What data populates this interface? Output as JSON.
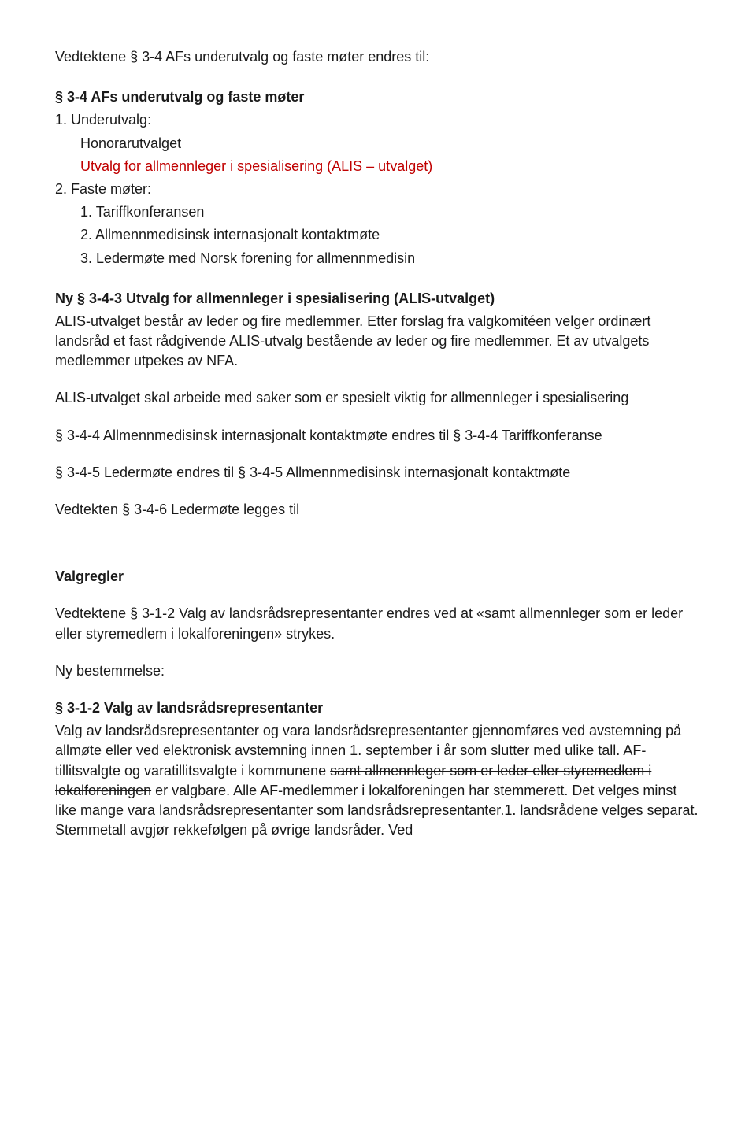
{
  "doc": {
    "p1": "Vedtektene § 3-4 AFs underutvalg og faste møter endres til:",
    "p2": "§ 3-4 AFs underutvalg og faste møter",
    "li1": "1. Underutvalg:",
    "li1a": "Honorarutvalget",
    "li1b": "Utvalg for allmennleger i spesialisering (ALIS – utvalget)",
    "li2": "2. Faste møter:",
    "li2a": "1. Tariffkonferansen",
    "li2b": "2. Allmennmedisinsk internasjonalt kontaktmøte",
    "li2c": "3. Ledermøte med Norsk forening for allmennmedisin",
    "h1": "Ny § 3-4-3 Utvalg for allmennleger i spesialisering (ALIS-utvalget)",
    "p3": "ALIS-utvalget består av leder og fire medlemmer. Etter forslag fra valgkomitéen velger ordinært landsråd et fast rådgivende ALIS-utvalg bestående av leder og fire medlemmer. Et av utvalgets medlemmer utpekes av NFA.",
    "p4": "ALIS-utvalget skal arbeide med saker som er spesielt viktig for allmennleger i spesialisering",
    "p5": "§ 3-4-4 Allmennmedisinsk internasjonalt kontaktmøte endres til § 3-4-4 Tariffkonferanse",
    "p6": "§ 3-4-5 Ledermøte endres til § 3-4-5 Allmennmedisinsk internasjonalt kontaktmøte",
    "p7": "Vedtekten § 3-4-6 Ledermøte legges til",
    "h2": "Valgregler",
    "p8": "Vedtektene § 3-1-2 Valg av landsrådsrepresentanter endres ved at «samt allmennleger som er leder eller styremedlem i lokalforeningen» strykes.",
    "p9": "Ny bestemmelse:",
    "h3": "§ 3-1-2 Valg av landsrådsrepresentanter",
    "p10a": "Valg av landsrådsrepresentanter og vara landsrådsrepresentanter gjennomføres ved avstemning på allmøte eller ved elektronisk avstemning innen 1. september i år som slutter med ulike tall. AF-tillitsvalgte og varatillitsvalgte i kommunene ",
    "p10strike": "samt allmennleger som er leder eller styremedlem i lokalforeningen",
    "p10b": " er valgbare. Alle AF-medlemmer i lokalforeningen har stemmerett. Det velges minst like mange vara landsrådsrepresentanter som landsrådsrepresentanter.1. landsrådene velges separat. Stemmetall avgjør rekkefølgen på øvrige landsråder. Ved"
  }
}
